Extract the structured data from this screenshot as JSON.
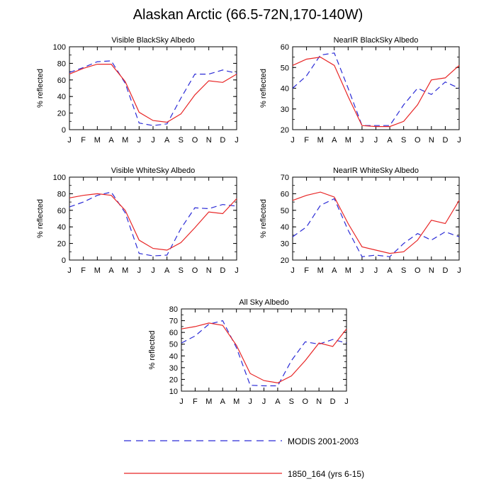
{
  "title": "Alaskan Arctic (66.5-72N,170-140W)",
  "series_styles": {
    "modis": {
      "color": "#2b2bd6",
      "dash": "8,5"
    },
    "model": {
      "color": "#e82525",
      "dash": ""
    }
  },
  "legend": [
    {
      "key": "modis",
      "label": "MODIS 2001-2003"
    },
    {
      "key": "model",
      "label": "1850_164 (yrs 6-15)"
    }
  ],
  "chart_data": [
    {
      "type": "line",
      "title": "Visible BlackSky Albedo",
      "ylabel": "% reflected",
      "categories": [
        "J",
        "F",
        "M",
        "A",
        "M",
        "J",
        "J",
        "A",
        "S",
        "O",
        "N",
        "D",
        "J"
      ],
      "ylim": [
        0,
        100
      ],
      "yticks": [
        0,
        20,
        40,
        60,
        80,
        100
      ],
      "series": [
        {
          "key": "modis",
          "values": [
            69,
            75,
            82,
            83,
            56,
            8,
            5,
            7,
            38,
            67,
            67,
            72,
            68
          ]
        },
        {
          "key": "model",
          "values": [
            67,
            74,
            79,
            79,
            58,
            21,
            11,
            9,
            19,
            42,
            59,
            57,
            67
          ]
        }
      ]
    },
    {
      "type": "line",
      "title": "NearIR BlackSky Albedo",
      "ylabel": "% reflected",
      "categories": [
        "J",
        "F",
        "M",
        "A",
        "M",
        "J",
        "J",
        "A",
        "S",
        "O",
        "N",
        "D",
        "J"
      ],
      "ylim": [
        20,
        60
      ],
      "yticks": [
        20,
        30,
        40,
        50,
        60
      ],
      "series": [
        {
          "key": "modis",
          "values": [
            40,
            46,
            56,
            57,
            40,
            22,
            22,
            22,
            32,
            40,
            37,
            43,
            40
          ]
        },
        {
          "key": "model",
          "values": [
            51,
            54,
            55,
            51,
            36,
            22,
            21.5,
            21.5,
            24,
            32,
            44,
            45,
            51
          ]
        }
      ]
    },
    {
      "type": "line",
      "title": "Visible WhiteSky Albedo",
      "ylabel": "% reflected",
      "categories": [
        "J",
        "F",
        "M",
        "A",
        "M",
        "J",
        "J",
        "A",
        "S",
        "O",
        "N",
        "D",
        "J"
      ],
      "ylim": [
        0,
        100
      ],
      "yticks": [
        0,
        20,
        40,
        60,
        80,
        100
      ],
      "series": [
        {
          "key": "modis",
          "values": [
            64,
            70,
            78,
            82,
            57,
            8,
            5,
            6,
            38,
            63,
            62,
            67,
            65
          ]
        },
        {
          "key": "model",
          "values": [
            75,
            78,
            80,
            78,
            60,
            24,
            14,
            12,
            21,
            39,
            58,
            56,
            74
          ]
        }
      ]
    },
    {
      "type": "line",
      "title": "NearIR WhiteSky Albedo",
      "ylabel": "% reflected",
      "categories": [
        "J",
        "F",
        "M",
        "A",
        "M",
        "J",
        "J",
        "A",
        "S",
        "O",
        "N",
        "D",
        "J"
      ],
      "ylim": [
        20,
        70
      ],
      "yticks": [
        20,
        30,
        40,
        50,
        60,
        70
      ],
      "series": [
        {
          "key": "modis",
          "values": [
            34,
            40,
            53,
            57,
            38,
            22,
            23,
            22,
            30,
            36,
            32,
            37,
            34
          ]
        },
        {
          "key": "model",
          "values": [
            56,
            59,
            61,
            58,
            42,
            28,
            26,
            24,
            25,
            32,
            44,
            42,
            56
          ]
        }
      ]
    },
    {
      "type": "line",
      "title": "All Sky Albedo",
      "ylabel": "% reflected",
      "categories": [
        "J",
        "F",
        "M",
        "A",
        "M",
        "J",
        "J",
        "A",
        "S",
        "O",
        "N",
        "D",
        "J"
      ],
      "ylim": [
        10,
        80
      ],
      "yticks": [
        10,
        20,
        30,
        40,
        50,
        60,
        70,
        80
      ],
      "series": [
        {
          "key": "modis",
          "values": [
            51,
            57,
            67,
            70,
            47,
            15,
            14.5,
            14.5,
            36,
            52,
            50,
            54,
            51
          ]
        },
        {
          "key": "model",
          "values": [
            63,
            65,
            68,
            66,
            49,
            25,
            19,
            17,
            23,
            36,
            51,
            48,
            63
          ]
        }
      ]
    }
  ]
}
